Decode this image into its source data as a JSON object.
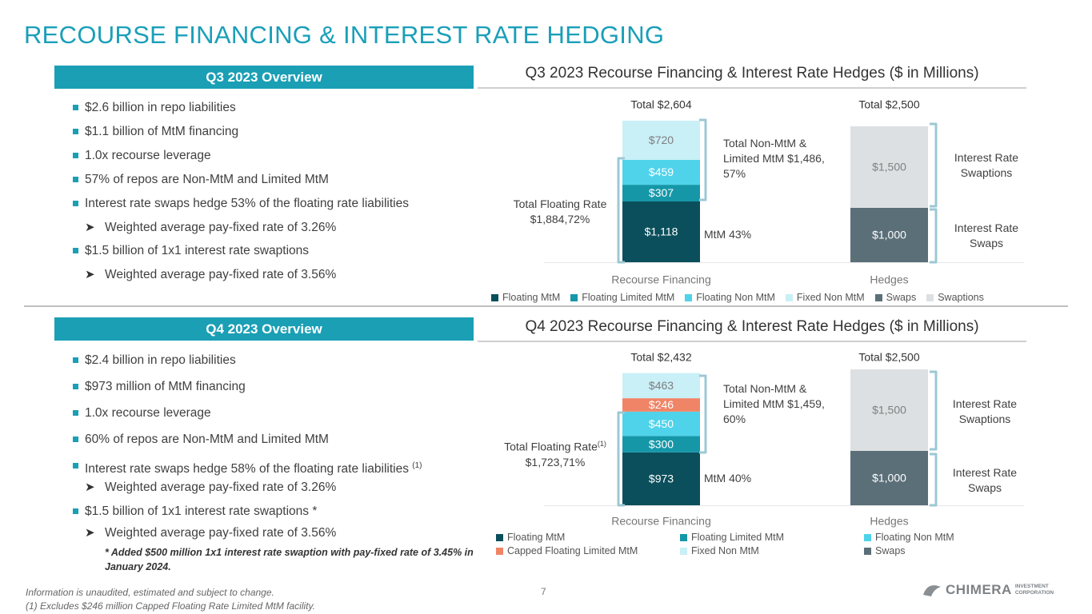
{
  "title": "RECOURSE FINANCING & INTEREST RATE HEDGING",
  "sections": [
    {
      "heading": "Q3 2023 Overview",
      "bullets": [
        {
          "text": "$2.6 billion in repo liabilities"
        },
        {
          "text": "$1.1 billion of MtM financing"
        },
        {
          "text": "1.0x recourse leverage"
        },
        {
          "text": "57% of repos are Non-MtM and Limited MtM"
        },
        {
          "text": "Interest rate swaps hedge 53% of the floating rate liabilities",
          "sub": "Weighted average pay-fixed rate of 3.26%"
        },
        {
          "text": "$1.5 billion of 1x1 interest rate swaptions",
          "sub": "Weighted average pay-fixed rate of 3.56%"
        }
      ]
    },
    {
      "heading": "Q4 2023 Overview",
      "bullets": [
        {
          "text": "$2.4 billion in repo liabilities"
        },
        {
          "text": "$973 million of MtM financing"
        },
        {
          "text": "1.0x recourse leverage"
        },
        {
          "text": "60% of repos are Non-MtM and Limited MtM"
        },
        {
          "text": "Interest rate swaps hedge 58% of the floating rate liabilities",
          "sup": "(1)",
          "sub": "Weighted average pay-fixed rate of 3.26%"
        },
        {
          "text": "$1.5 billion of 1x1 interest rate swaptions *",
          "sub": "Weighted average pay-fixed rate of 3.56%"
        }
      ],
      "note": "* Added $500 million 1x1 interest rate swaption with pay-fixed rate of 3.45% in January 2024."
    }
  ],
  "chart_data": [
    {
      "type": "bar",
      "stacked": true,
      "title": "Q3 2023 Recourse Financing & Interest Rate Hedges ($ in Millions)",
      "categories": [
        "Recourse Financing",
        "Hedges"
      ],
      "total_labels": [
        "Total $2,604",
        "Total $2,500"
      ],
      "series": [
        {
          "name": "Floating MtM",
          "color": "#0b4f5c",
          "values": [
            1118,
            null
          ],
          "value_labels": [
            "$1,118",
            null
          ]
        },
        {
          "name": "Floating Limited MtM",
          "color": "#1597a8",
          "values": [
            307,
            null
          ],
          "value_labels": [
            "$307",
            null
          ]
        },
        {
          "name": "Floating Non MtM",
          "color": "#4fd3ea",
          "values": [
            459,
            null
          ],
          "value_labels": [
            "$459",
            null
          ]
        },
        {
          "name": "Fixed Non MtM",
          "color": "#c9eff7",
          "values": [
            720,
            null
          ],
          "value_labels": [
            "$720",
            null
          ]
        },
        {
          "name": "Swaps",
          "color": "#5b6f79",
          "values": [
            null,
            1000
          ],
          "value_labels": [
            null,
            "$1,000"
          ]
        },
        {
          "name": "Swaptions",
          "color": "#dde0e2",
          "values": [
            null,
            1500
          ],
          "value_labels": [
            null,
            "$1,500"
          ]
        }
      ],
      "annotations": {
        "non_mtm": "Total Non-MtM & Limited MtM $1,486, 57%",
        "floating": "Total Floating Rate",
        "floating_value": "$1,884,72%",
        "mtm": "MtM 43%",
        "swaptions": "Interest Rate Swaptions",
        "swaps": "Interest Rate Swaps"
      }
    },
    {
      "type": "bar",
      "stacked": true,
      "title": "Q4 2023 Recourse Financing & Interest Rate Hedges ($ in Millions)",
      "categories": [
        "Recourse Financing",
        "Hedges"
      ],
      "total_labels": [
        "Total $2,432",
        "Total $2,500"
      ],
      "series": [
        {
          "name": "Floating MtM",
          "color": "#0b4f5c",
          "values": [
            973,
            null
          ],
          "value_labels": [
            "$973",
            null
          ]
        },
        {
          "name": "Floating Limited MtM",
          "color": "#1597a8",
          "values": [
            300,
            null
          ],
          "value_labels": [
            "$300",
            null
          ]
        },
        {
          "name": "Floating Non MtM",
          "color": "#4fd3ea",
          "values": [
            450,
            null
          ],
          "value_labels": [
            "$450",
            null
          ]
        },
        {
          "name": "Capped Floating Limited MtM",
          "color": "#f08466",
          "values": [
            246,
            null
          ],
          "value_labels": [
            "$246",
            null
          ]
        },
        {
          "name": "Fixed Non MtM",
          "color": "#c9eff7",
          "values": [
            463,
            null
          ],
          "value_labels": [
            "$463",
            null
          ]
        },
        {
          "name": "Swaps",
          "color": "#5b6f79",
          "values": [
            null,
            1000
          ],
          "value_labels": [
            null,
            "$1,000"
          ]
        },
        {
          "color": "#dde0e2",
          "values": [
            null,
            1500
          ],
          "value_labels": [
            null,
            "$1,500"
          ]
        }
      ],
      "annotations": {
        "non_mtm": "Total Non-MtM & Limited MtM $1,459, 60%",
        "floating": "Total Floating Rate",
        "floating_sup": "(1)",
        "floating_value": "$1,723,71%",
        "mtm": "MtM 40%",
        "swaptions": "Interest Rate Swaptions",
        "swaps": "Interest Rate Swaps"
      }
    }
  ],
  "footer": {
    "notes": [
      "Information is unaudited, estimated and subject to change.",
      "(1) Excludes $246 million Capped Floating Rate Limited MtM facility."
    ],
    "page": "7",
    "logo": {
      "name": "CHIMERA",
      "line1": "INVESTMENT",
      "line2": "CORPORATION"
    }
  }
}
